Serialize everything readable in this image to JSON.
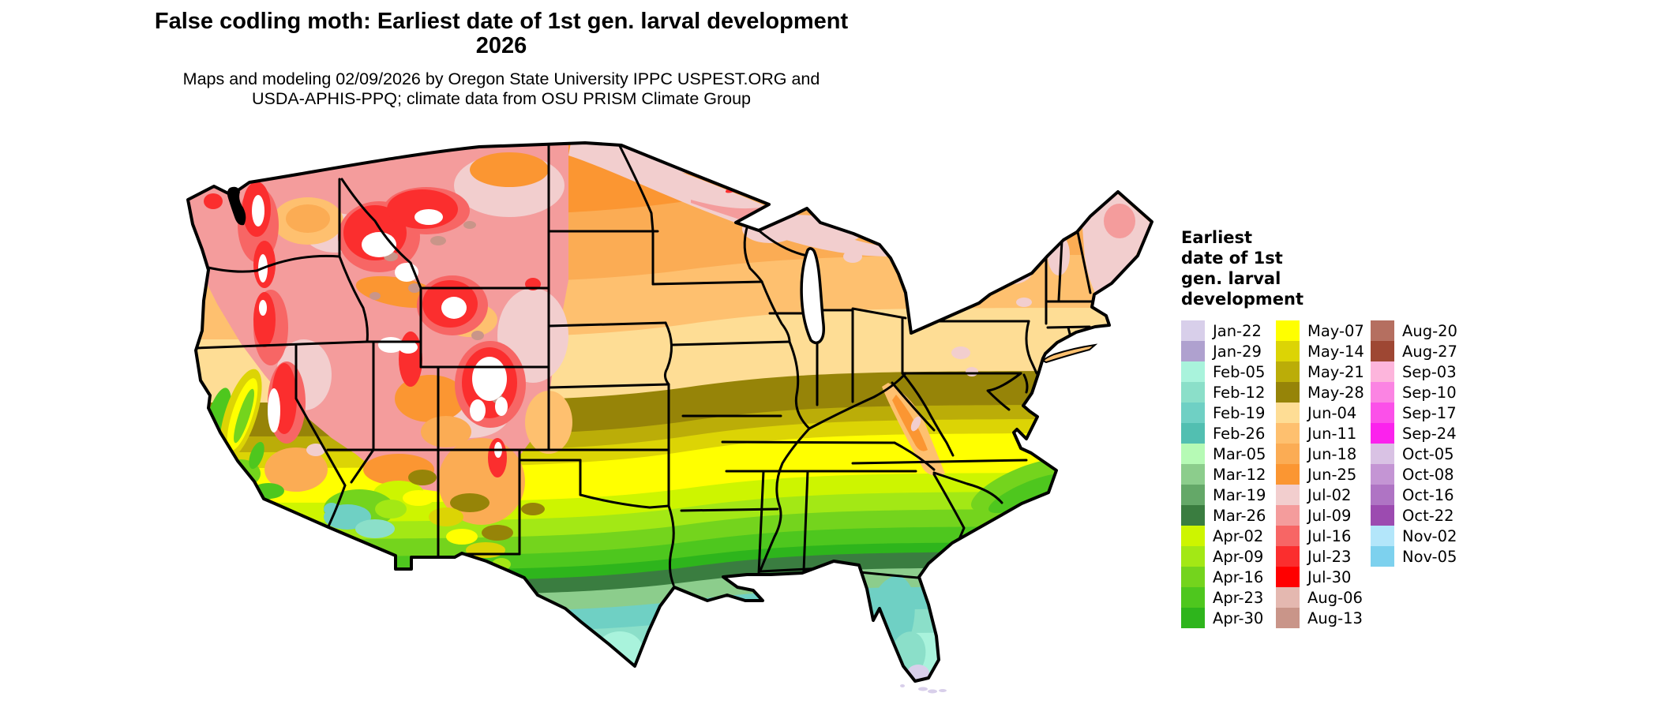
{
  "header": {
    "title": "False codling moth: Earliest date of 1st gen. larval development\n2026",
    "subtitle": "Maps and modeling 02/09/2026 by Oregon State University IPPC USPEST.ORG and\nUSDA-APHIS-PPQ; climate data from OSU PRISM Climate Group"
  },
  "map": {
    "region": "contiguous-united-states",
    "no_data_color": "#ffffff"
  },
  "legend": {
    "title": "Earliest\ndate of 1st\ngen. larval\ndevelopment",
    "columns": [
      {
        "items": [
          {
            "label": "Jan-22",
            "color": "#D8CFEA"
          },
          {
            "label": "Jan-29",
            "color": "#AFA1CF"
          },
          {
            "label": "Feb-05",
            "color": "#A9F3DC"
          },
          {
            "label": "Feb-12",
            "color": "#8BDFC9"
          },
          {
            "label": "Feb-19",
            "color": "#6FD0C4"
          },
          {
            "label": "Feb-26",
            "color": "#52BFB1"
          },
          {
            "label": "Mar-05",
            "color": "#B6FAB5"
          },
          {
            "label": "Mar-12",
            "color": "#8CCD8C"
          },
          {
            "label": "Mar-19",
            "color": "#64A868"
          },
          {
            "label": "Mar-26",
            "color": "#3A7D40"
          },
          {
            "label": "Apr-02",
            "color": "#CDF500"
          },
          {
            "label": "Apr-09",
            "color": "#A3E815"
          },
          {
            "label": "Apr-16",
            "color": "#74D41D"
          },
          {
            "label": "Apr-23",
            "color": "#4EC71E"
          },
          {
            "label": "Apr-30",
            "color": "#2EB51C"
          }
        ]
      },
      {
        "items": [
          {
            "label": "May-07",
            "color": "#FFFF00"
          },
          {
            "label": "May-14",
            "color": "#DCD405"
          },
          {
            "label": "May-21",
            "color": "#BBAD08"
          },
          {
            "label": "May-28",
            "color": "#968408"
          },
          {
            "label": "Jun-04",
            "color": "#FEDD95"
          },
          {
            "label": "Jun-11",
            "color": "#FEC06F"
          },
          {
            "label": "Jun-18",
            "color": "#FBAC54"
          },
          {
            "label": "Jun-25",
            "color": "#FB9632"
          },
          {
            "label": "Jul-02",
            "color": "#F2CECE"
          },
          {
            "label": "Jul-09",
            "color": "#F49C9C"
          },
          {
            "label": "Jul-16",
            "color": "#F76665"
          },
          {
            "label": "Jul-23",
            "color": "#FB2E2E"
          },
          {
            "label": "Jul-30",
            "color": "#FF0000"
          },
          {
            "label": "Aug-06",
            "color": "#E4B8B0"
          },
          {
            "label": "Aug-13",
            "color": "#C99589"
          }
        ]
      },
      {
        "items": [
          {
            "label": "Aug-20",
            "color": "#B56F60"
          },
          {
            "label": "Aug-27",
            "color": "#9E4733"
          },
          {
            "label": "Sep-03",
            "color": "#FDB5DC"
          },
          {
            "label": "Sep-10",
            "color": "#FB84E3"
          },
          {
            "label": "Sep-17",
            "color": "#FB50E9"
          },
          {
            "label": "Sep-24",
            "color": "#FB22ED"
          },
          {
            "label": "Oct-05",
            "color": "#D9C2E4"
          },
          {
            "label": "Oct-08",
            "color": "#C495D4"
          },
          {
            "label": "Oct-16",
            "color": "#AF74C4"
          },
          {
            "label": "Oct-22",
            "color": "#9C4BB0"
          },
          {
            "label": "Nov-02",
            "color": "#B3E6FA"
          },
          {
            "label": "Nov-05",
            "color": "#7DD1EE"
          }
        ]
      }
    ]
  }
}
